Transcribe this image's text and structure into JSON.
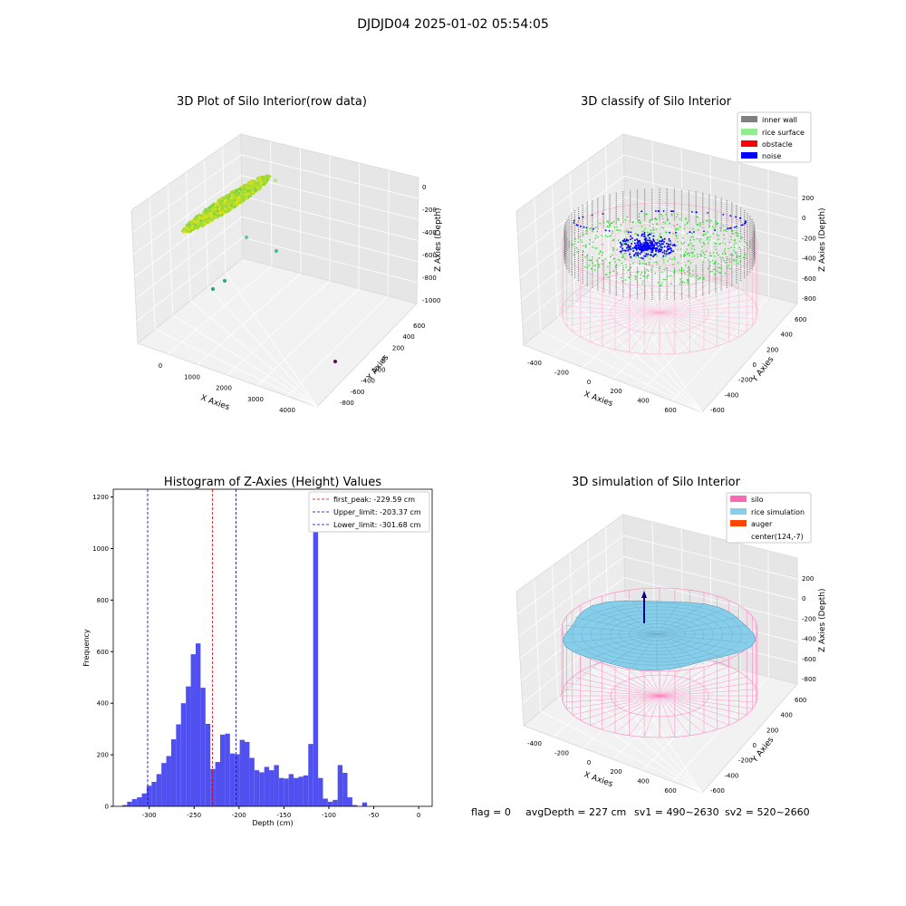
{
  "suptitle": "DJDJD04 2025-01-02 05:54:05",
  "colors": {
    "hist_bar": "#5050f0",
    "first_peak": "#e00000",
    "limit": "#0000aa",
    "wall": "#808080",
    "rice_surface": "#90ee90",
    "obstacle": "#ff0000",
    "noise": "#0000ff",
    "silo": "#ff69b4",
    "rice_sim": "#87ceeb",
    "auger": "#ff4500",
    "pane": "#f2f2f2",
    "grid": "#d8d8d8"
  },
  "plot_raw": {
    "title": "3D Plot of Silo Interior(row data)",
    "xlabel": "X Axies",
    "ylabel": "Y Axies",
    "zlabel": "Z Axies (Depth)",
    "xticks": [
      "0",
      "1000",
      "2000",
      "3000",
      "4000"
    ],
    "yticks": [
      "600",
      "400",
      "200",
      "0",
      "-200",
      "-400",
      "-600",
      "-800"
    ],
    "zticks": [
      "0",
      "-200",
      "-400",
      "-600",
      "-800",
      "-1000"
    ]
  },
  "plot_classify": {
    "title": "3D classify of Silo Interior",
    "xlabel": "X Axies",
    "ylabel": "Y Axies",
    "zlabel": "Z Axies (Depth)",
    "xticks": [
      "-400",
      "-200",
      "0",
      "200",
      "400",
      "600"
    ],
    "yticks": [
      "600",
      "400",
      "200",
      "0",
      "-200",
      "-400",
      "-600"
    ],
    "zticks": [
      "200",
      "0",
      "-200",
      "-400",
      "-600",
      "-800"
    ],
    "legend": [
      "inner wall",
      "rice surface",
      "obstacle",
      "noise"
    ]
  },
  "plot_sim": {
    "title": "3D simulation of Silo Interior",
    "xlabel": "X Axies",
    "ylabel": "Y Axies",
    "zlabel": "Z Axies (Depth)",
    "xticks": [
      "-400",
      "-200",
      "0",
      "200",
      "400",
      "600"
    ],
    "yticks": [
      "600",
      "400",
      "200",
      "0",
      "-200",
      "-400",
      "-600"
    ],
    "zticks": [
      "200",
      "0",
      "-200",
      "-400",
      "-600",
      "-800"
    ],
    "legend": [
      "silo",
      "rice simulation",
      "auger",
      "center(124,-7)"
    ]
  },
  "status_line": {
    "flag": "flag = 0",
    "avg": "avgDepth = 227 cm",
    "sv1": "sv1 = 490~2630",
    "sv2": "sv2 = 520~2660"
  },
  "chart_data": [
    {
      "type": "bar",
      "title": "Histogram of Z-Axies (Height) Values",
      "xlabel": "Depth (cm)",
      "ylabel": "Frequency",
      "xlim": [
        -340,
        15
      ],
      "ylim": [
        0,
        1230
      ],
      "xticks": [
        -300,
        -250,
        -200,
        -150,
        -100,
        -50,
        0
      ],
      "yticks": [
        0,
        200,
        400,
        600,
        800,
        1000,
        1200
      ],
      "bin_start": -330,
      "bin_width": 5.45,
      "values": [
        5,
        18,
        28,
        35,
        50,
        80,
        95,
        125,
        168,
        195,
        260,
        318,
        400,
        465,
        590,
        632,
        460,
        320,
        145,
        172,
        278,
        282,
        205,
        202,
        258,
        250,
        188,
        140,
        132,
        153,
        140,
        160,
        110,
        108,
        125,
        110,
        115,
        120,
        242,
        1150,
        110,
        30,
        18,
        25,
        160,
        130,
        35,
        5,
        0,
        15
      ],
      "vlines": [
        {
          "label": "first_peak: -229.59 cm",
          "x": -229.59,
          "kind": "peak"
        },
        {
          "label": "Upper_limit: -203.37 cm",
          "x": -203.37,
          "kind": "limit"
        },
        {
          "label": "Lower_limit: -301.68 cm",
          "x": -301.68,
          "kind": "limit"
        }
      ],
      "legend_position": "upper right"
    }
  ]
}
